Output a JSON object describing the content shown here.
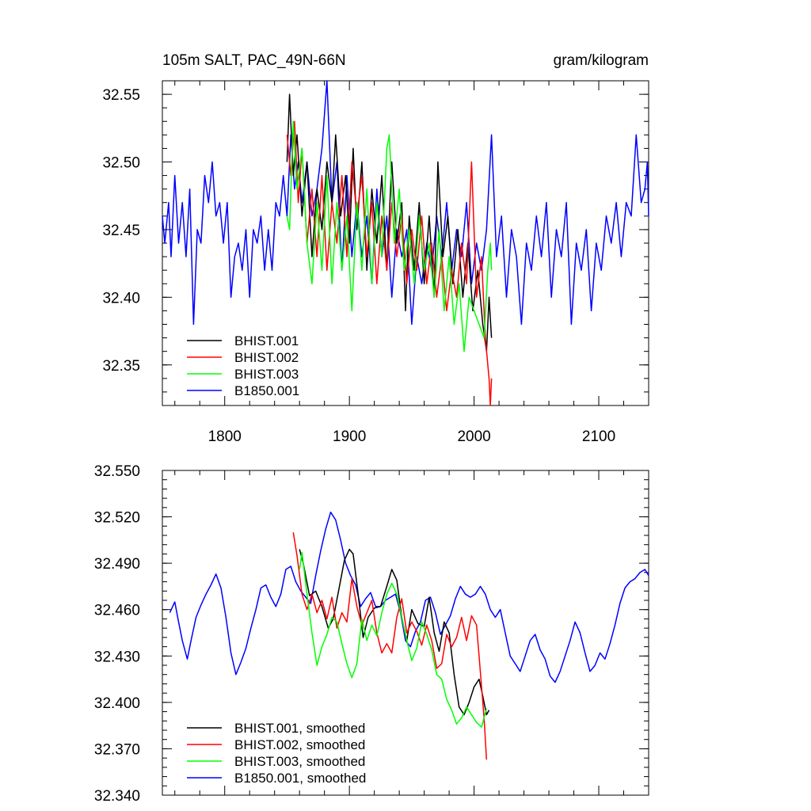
{
  "chart_data": [
    {
      "type": "line",
      "title": "105m SALT, PAC_49N-66N",
      "units": "gram/kilogram",
      "xlim": [
        1750,
        2140
      ],
      "ylim": [
        32.32,
        32.56
      ],
      "xticks": [
        1800,
        1900,
        2000,
        2100
      ],
      "xtick_labels": [
        "1800",
        "1900",
        "2000",
        "2100"
      ],
      "yticks": [
        32.35,
        32.4,
        32.45,
        32.5,
        32.55
      ],
      "ytick_labels": [
        "32.35",
        "32.40",
        "32.45",
        "32.50",
        "32.55"
      ],
      "legend_position": "bottom-left",
      "series": [
        {
          "name": "BHIST.001",
          "color": "#000000",
          "x": [
            1850,
            1852,
            1855,
            1858,
            1862,
            1866,
            1870,
            1874,
            1878,
            1882,
            1886,
            1889,
            1893,
            1897,
            1900,
            1903,
            1906,
            1910,
            1914,
            1918,
            1922,
            1926,
            1930,
            1934,
            1938,
            1942,
            1945,
            1948,
            1952,
            1956,
            1960,
            1964,
            1968,
            1971,
            1975,
            1979,
            1983,
            1987,
            1991,
            1995,
            1999,
            2003,
            2007,
            2010,
            2012,
            2014
          ],
          "y": [
            32.5,
            32.55,
            32.49,
            32.52,
            32.46,
            32.5,
            32.43,
            32.48,
            32.45,
            32.5,
            32.47,
            32.52,
            32.46,
            32.49,
            32.44,
            32.51,
            32.45,
            32.5,
            32.42,
            32.48,
            32.44,
            32.49,
            32.42,
            32.5,
            32.44,
            32.47,
            32.39,
            32.46,
            32.42,
            32.47,
            32.41,
            32.46,
            32.4,
            32.5,
            32.43,
            32.46,
            32.41,
            32.45,
            32.4,
            32.44,
            32.39,
            32.42,
            32.38,
            32.36,
            32.4,
            32.37
          ]
        },
        {
          "name": "BHIST.002",
          "color": "#ff0000",
          "x": [
            1850,
            1853,
            1856,
            1859,
            1862,
            1866,
            1870,
            1874,
            1878,
            1882,
            1886,
            1890,
            1894,
            1898,
            1902,
            1906,
            1910,
            1914,
            1918,
            1922,
            1926,
            1930,
            1934,
            1938,
            1942,
            1946,
            1950,
            1954,
            1958,
            1962,
            1966,
            1970,
            1974,
            1978,
            1982,
            1986,
            1990,
            1994,
            1998,
            2002,
            2006,
            2009,
            2012,
            2013,
            2014
          ],
          "y": [
            32.52,
            32.49,
            32.53,
            32.47,
            32.51,
            32.44,
            32.48,
            32.43,
            32.49,
            32.42,
            32.47,
            32.44,
            32.49,
            32.43,
            32.5,
            32.46,
            32.49,
            32.43,
            32.47,
            32.41,
            32.46,
            32.42,
            32.47,
            32.43,
            32.46,
            32.41,
            32.45,
            32.42,
            32.46,
            32.41,
            32.44,
            32.4,
            32.43,
            32.39,
            32.42,
            32.4,
            32.44,
            32.41,
            32.5,
            32.4,
            32.43,
            32.37,
            32.34,
            32.32,
            32.34
          ]
        },
        {
          "name": "BHIST.003",
          "color": "#00ff00",
          "x": [
            1850,
            1852,
            1855,
            1858,
            1862,
            1866,
            1870,
            1874,
            1878,
            1882,
            1886,
            1890,
            1894,
            1898,
            1902,
            1906,
            1910,
            1914,
            1918,
            1922,
            1926,
            1930,
            1932,
            1936,
            1940,
            1944,
            1948,
            1952,
            1956,
            1960,
            1964,
            1968,
            1972,
            1976,
            1980,
            1984,
            1988,
            1992,
            1996,
            2000,
            2004,
            2008,
            2011,
            2013,
            2014
          ],
          "y": [
            32.46,
            32.45,
            32.53,
            32.48,
            32.51,
            32.44,
            32.41,
            32.47,
            32.42,
            32.49,
            32.41,
            32.47,
            32.42,
            32.46,
            32.39,
            32.47,
            32.42,
            32.48,
            32.41,
            32.47,
            32.43,
            32.51,
            32.52,
            32.44,
            32.48,
            32.42,
            32.45,
            32.41,
            32.46,
            32.42,
            32.44,
            32.4,
            32.45,
            32.39,
            32.43,
            32.38,
            32.41,
            32.36,
            32.4,
            32.39,
            32.38,
            32.37,
            32.42,
            32.44,
            32.42
          ]
        },
        {
          "name": "B1850.001",
          "color": "#0000ff",
          "x": [
            1750,
            1752,
            1755,
            1757,
            1760,
            1763,
            1766,
            1769,
            1772,
            1775,
            1778,
            1781,
            1784,
            1787,
            1790,
            1793,
            1796,
            1799,
            1802,
            1805,
            1808,
            1811,
            1814,
            1817,
            1820,
            1823,
            1826,
            1829,
            1832,
            1835,
            1838,
            1841,
            1844,
            1847,
            1850,
            1853,
            1856,
            1859,
            1862,
            1866,
            1870,
            1874,
            1878,
            1882,
            1886,
            1890,
            1894,
            1898,
            1902,
            1906,
            1910,
            1914,
            1918,
            1922,
            1926,
            1930,
            1934,
            1938,
            1942,
            1946,
            1950,
            1954,
            1958,
            1962,
            1966,
            1970,
            1974,
            1978,
            1982,
            1986,
            1990,
            1994,
            1998,
            2002,
            2006,
            2010,
            2014,
            2018,
            2022,
            2026,
            2030,
            2034,
            2038,
            2042,
            2046,
            2050,
            2054,
            2058,
            2062,
            2066,
            2070,
            2074,
            2078,
            2082,
            2086,
            2090,
            2094,
            2098,
            2102,
            2106,
            2110,
            2114,
            2118,
            2122,
            2126,
            2130,
            2134,
            2137,
            2139,
            2140
          ],
          "y": [
            32.46,
            32.44,
            32.47,
            32.43,
            32.49,
            32.44,
            32.47,
            32.43,
            32.48,
            32.38,
            32.45,
            32.44,
            32.49,
            32.47,
            32.5,
            32.46,
            32.47,
            32.44,
            32.47,
            32.4,
            32.43,
            32.44,
            32.42,
            32.45,
            32.4,
            32.45,
            32.44,
            32.46,
            32.42,
            32.45,
            32.42,
            32.47,
            32.46,
            32.49,
            32.46,
            32.52,
            32.48,
            32.5,
            32.47,
            32.5,
            32.46,
            32.48,
            32.51,
            32.56,
            32.47,
            32.5,
            32.42,
            32.49,
            32.43,
            32.47,
            32.43,
            32.46,
            32.41,
            32.48,
            32.43,
            32.46,
            32.4,
            32.45,
            32.43,
            32.45,
            32.38,
            32.43,
            32.41,
            32.44,
            32.42,
            32.46,
            32.43,
            32.47,
            32.42,
            32.45,
            32.43,
            32.47,
            32.41,
            32.44,
            32.42,
            32.45,
            32.52,
            32.43,
            32.46,
            32.4,
            32.45,
            32.43,
            32.38,
            32.44,
            32.42,
            32.46,
            32.43,
            32.47,
            32.4,
            32.45,
            32.43,
            32.47,
            32.38,
            32.44,
            32.42,
            32.45,
            32.39,
            32.44,
            32.42,
            32.46,
            32.44,
            32.47,
            32.43,
            32.47,
            32.46,
            32.52,
            32.47,
            32.48,
            32.5,
            32.46
          ]
        }
      ]
    },
    {
      "type": "line",
      "xlim": [
        1750,
        2140
      ],
      "ylim": [
        32.34,
        32.55
      ],
      "yticks": [
        32.34,
        32.37,
        32.4,
        32.43,
        32.46,
        32.49,
        32.52,
        32.55
      ],
      "ytick_labels": [
        "32.340",
        "32.370",
        "32.400",
        "32.430",
        "32.460",
        "32.490",
        "32.520",
        "32.550"
      ],
      "xticks": [
        1800,
        1900,
        2000,
        2100
      ],
      "legend_position": "bottom-left",
      "series": [
        {
          "name": "BHIST.001, smoothed",
          "color": "#000000",
          "x": [
            1860,
            1863,
            1868,
            1873,
            1878,
            1883,
            1887,
            1892,
            1896,
            1900,
            1903,
            1907,
            1911,
            1915,
            1920,
            1925,
            1930,
            1934,
            1938,
            1942,
            1946,
            1950,
            1955,
            1960,
            1964,
            1968,
            1972,
            1976,
            1980,
            1984,
            1988,
            1992,
            1996,
            2000,
            2004,
            2007,
            2010,
            2012
          ],
          "y": [
            32.499,
            32.49,
            32.469,
            32.472,
            32.462,
            32.448,
            32.454,
            32.475,
            32.492,
            32.499,
            32.496,
            32.47,
            32.442,
            32.455,
            32.461,
            32.462,
            32.475,
            32.486,
            32.479,
            32.455,
            32.44,
            32.46,
            32.451,
            32.449,
            32.468,
            32.445,
            32.433,
            32.452,
            32.445,
            32.418,
            32.397,
            32.392,
            32.4,
            32.41,
            32.415,
            32.404,
            32.392,
            32.395
          ]
        },
        {
          "name": "BHIST.002, smoothed",
          "color": "#ff0000",
          "x": [
            1855,
            1858,
            1862,
            1866,
            1870,
            1874,
            1878,
            1882,
            1886,
            1890,
            1894,
            1898,
            1902,
            1906,
            1910,
            1914,
            1918,
            1922,
            1926,
            1930,
            1934,
            1938,
            1942,
            1946,
            1950,
            1954,
            1958,
            1962,
            1966,
            1970,
            1974,
            1978,
            1982,
            1986,
            1990,
            1994,
            1998,
            2002,
            2004,
            2008,
            2010
          ],
          "y": [
            32.51,
            32.495,
            32.47,
            32.46,
            32.47,
            32.458,
            32.466,
            32.454,
            32.468,
            32.448,
            32.458,
            32.452,
            32.48,
            32.462,
            32.45,
            32.458,
            32.466,
            32.445,
            32.432,
            32.438,
            32.432,
            32.455,
            32.467,
            32.445,
            32.452,
            32.446,
            32.437,
            32.45,
            32.44,
            32.422,
            32.425,
            32.444,
            32.436,
            32.442,
            32.455,
            32.44,
            32.456,
            32.45,
            32.43,
            32.39,
            32.363
          ]
        },
        {
          "name": "BHIST.003, smoothed",
          "color": "#00ff00",
          "x": [
            1860,
            1862,
            1866,
            1870,
            1874,
            1878,
            1882,
            1886,
            1890,
            1894,
            1898,
            1902,
            1906,
            1910,
            1914,
            1918,
            1922,
            1926,
            1930,
            1934,
            1938,
            1942,
            1946,
            1950,
            1954,
            1958,
            1962,
            1966,
            1970,
            1974,
            1978,
            1982,
            1986,
            1990,
            1994,
            1998,
            2002,
            2006,
            2010
          ],
          "y": [
            32.486,
            32.497,
            32.47,
            32.445,
            32.424,
            32.436,
            32.444,
            32.455,
            32.452,
            32.438,
            32.425,
            32.416,
            32.425,
            32.454,
            32.44,
            32.45,
            32.443,
            32.458,
            32.47,
            32.477,
            32.47,
            32.455,
            32.44,
            32.427,
            32.435,
            32.452,
            32.444,
            32.434,
            32.418,
            32.415,
            32.402,
            32.395,
            32.386,
            32.39,
            32.397,
            32.392,
            32.387,
            32.384,
            32.396
          ]
        },
        {
          "name": "B1850.001, smoothed",
          "color": "#0000ff",
          "x": [
            1756,
            1760,
            1763,
            1766,
            1770,
            1773,
            1777,
            1781,
            1785,
            1789,
            1793,
            1797,
            1801,
            1805,
            1809,
            1813,
            1817,
            1821,
            1825,
            1829,
            1833,
            1837,
            1841,
            1845,
            1849,
            1853,
            1857,
            1861,
            1865,
            1869,
            1873,
            1877,
            1881,
            1885,
            1889,
            1893,
            1897,
            1901,
            1905,
            1909,
            1913,
            1917,
            1921,
            1925,
            1929,
            1933,
            1937,
            1941,
            1945,
            1949,
            1953,
            1957,
            1961,
            1965,
            1969,
            1973,
            1977,
            1981,
            1985,
            1989,
            1993,
            1997,
            2001,
            2005,
            2009,
            2013,
            2017,
            2021,
            2025,
            2029,
            2033,
            2037,
            2041,
            2045,
            2049,
            2053,
            2057,
            2061,
            2065,
            2069,
            2073,
            2077,
            2081,
            2085,
            2089,
            2093,
            2097,
            2101,
            2105,
            2109,
            2113,
            2117,
            2121,
            2125,
            2129,
            2133,
            2137,
            2140
          ],
          "y": [
            32.458,
            32.465,
            32.452,
            32.44,
            32.428,
            32.44,
            32.455,
            32.463,
            32.47,
            32.476,
            32.483,
            32.474,
            32.455,
            32.432,
            32.418,
            32.426,
            32.435,
            32.448,
            32.46,
            32.474,
            32.476,
            32.468,
            32.462,
            32.47,
            32.486,
            32.488,
            32.478,
            32.472,
            32.468,
            32.464,
            32.482,
            32.498,
            32.512,
            32.523,
            32.518,
            32.505,
            32.49,
            32.482,
            32.476,
            32.462,
            32.467,
            32.471,
            32.462,
            32.462,
            32.466,
            32.468,
            32.47,
            32.458,
            32.44,
            32.436,
            32.446,
            32.452,
            32.466,
            32.468,
            32.458,
            32.444,
            32.45,
            32.456,
            32.467,
            32.475,
            32.47,
            32.468,
            32.47,
            32.475,
            32.47,
            32.46,
            32.455,
            32.46,
            32.445,
            32.43,
            32.425,
            32.42,
            32.43,
            32.44,
            32.444,
            32.434,
            32.428,
            32.417,
            32.413,
            32.42,
            32.43,
            32.44,
            32.452,
            32.445,
            32.432,
            32.42,
            32.424,
            32.432,
            32.428,
            32.438,
            32.45,
            32.464,
            32.474,
            32.478,
            32.48,
            32.484,
            32.486,
            32.482
          ]
        }
      ]
    }
  ]
}
